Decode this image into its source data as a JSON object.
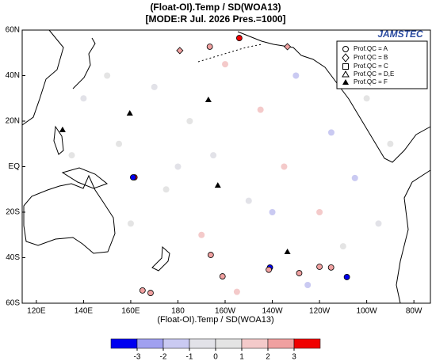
{
  "chart_data": {
    "type": "map",
    "title": "(Float-OI).Temp / SD(WOA13)",
    "subtitle": "[MODE:R Jul. 2026  Pres.=1000]",
    "x_label": "(Float-OI).Temp / SD(WOA13)",
    "logo": "JAMSTEC",
    "xlim": [
      114,
      287
    ],
    "ylim": [
      -60,
      60
    ],
    "xticks": [
      {
        "value": 120,
        "label": "120E"
      },
      {
        "value": 140,
        "label": "140E"
      },
      {
        "value": 160,
        "label": "160E"
      },
      {
        "value": 180,
        "label": "180"
      },
      {
        "value": 200,
        "label": "160W"
      },
      {
        "value": 220,
        "label": "140W"
      },
      {
        "value": 240,
        "label": "120W"
      },
      {
        "value": 260,
        "label": "100W"
      },
      {
        "value": 280,
        "label": "80W"
      }
    ],
    "yticks": [
      {
        "value": 60,
        "label": "60N"
      },
      {
        "value": 40,
        "label": "40N"
      },
      {
        "value": 20,
        "label": "20N"
      },
      {
        "value": 0,
        "label": "EQ"
      },
      {
        "value": -20,
        "label": "20S"
      },
      {
        "value": -40,
        "label": "40S"
      },
      {
        "value": -60,
        "label": "60S"
      }
    ],
    "legend": [
      "Prof.QC = A",
      "Prof.QC = B",
      "Prof.QC = C",
      "Prof.QC = D,E",
      "Prof.QC = F"
    ],
    "colorbar": {
      "ticks": [
        -3,
        -2,
        -1,
        0,
        1,
        2,
        3
      ],
      "colors": [
        "#0000f0",
        "#a0a0f0",
        "#cacaf2",
        "#e2e2e8",
        "#e4e4e4",
        "#f4caca",
        "#f0a0a0",
        "#f00000"
      ]
    },
    "points": {
      "lon": [
        180.8,
        193.5,
        206,
        226.4,
        161.6,
        161.0,
        193.9,
        198.9,
        219,
        218.5,
        231.4,
        240,
        244.9,
        251.6,
        165,
        168.4,
        150,
        170,
        200,
        230,
        260,
        140,
        185,
        215,
        245,
        270,
        155,
        195,
        225,
        255,
        135,
        175,
        210,
        240,
        265,
        160,
        190,
        220,
        250,
        180,
        205,
        235
      ],
      "lat": [
        51,
        52.7,
        56.5,
        52.7,
        -4.7,
        -4.7,
        -38.8,
        -48.2,
        -44.3,
        -45.3,
        -46.8,
        -44,
        -44.3,
        -48.5,
        -54.4,
        -55.5,
        40,
        35,
        45,
        40,
        30,
        30,
        20,
        25,
        15,
        10,
        10,
        5,
        0,
        -5,
        5,
        -10,
        -15,
        -20,
        -25,
        -25,
        -30,
        -20,
        -35,
        0,
        -55,
        -52
      ],
      "values": [
        2.5,
        2.5,
        3.2,
        2.6,
        3.1,
        -3.1,
        2.4,
        2.3,
        -3.2,
        2.5,
        2.4,
        2.4,
        2.3,
        -3.1,
        2.3,
        2.5,
        0.3,
        -0.2,
        1.2,
        -1.3,
        0.4,
        -0.6,
        0.2,
        1.4,
        -1.1,
        0.1,
        0.5,
        -0.3,
        1.1,
        -1.2,
        0.2,
        0.6,
        -0.4,
        1.3,
        -0.8,
        0.3,
        1.1,
        -1.2,
        0.2,
        -0.1,
        1.6,
        -1.4
      ],
      "qc": [
        "B",
        "A",
        "A",
        "B",
        "A",
        "A",
        "A",
        "A",
        "A",
        "A",
        "A",
        "A",
        "A",
        "A",
        "A",
        "A",
        "A",
        "A",
        "A",
        "A",
        "A",
        "A",
        "A",
        "A",
        "A",
        "A",
        "A",
        "A",
        "A",
        "A",
        "A",
        "A",
        "A",
        "A",
        "A",
        "A",
        "A",
        "A",
        "A",
        "A",
        "A",
        "A"
      ]
    },
    "flagged": {
      "lon": [
        159.6,
        192.9,
        196.9,
        226.4,
        131.1
      ],
      "lat": [
        23.5,
        29.4,
        -8.2,
        -37.4,
        16.2
      ]
    }
  }
}
